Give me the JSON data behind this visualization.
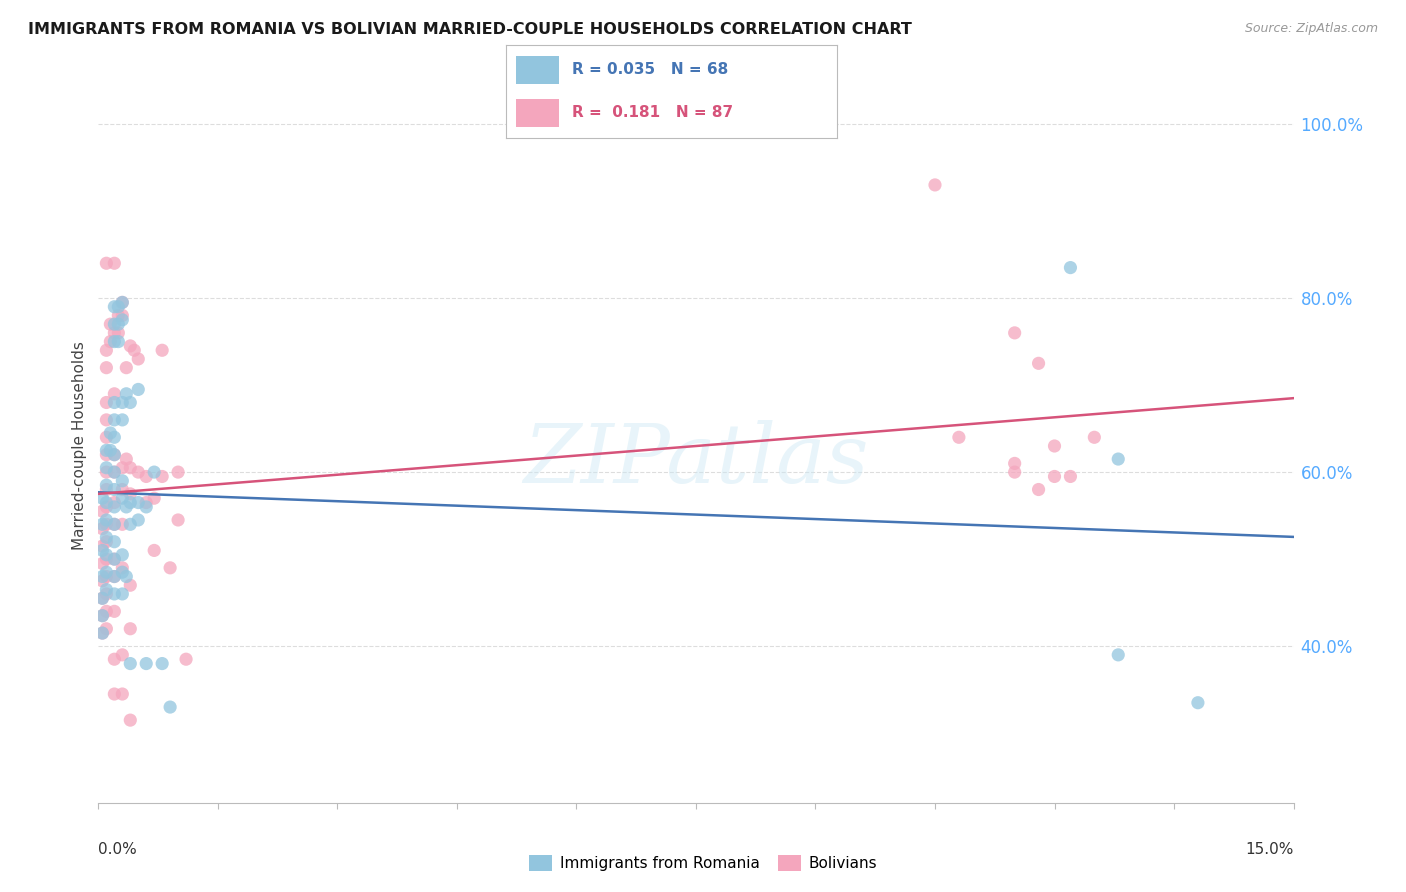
{
  "title": "IMMIGRANTS FROM ROMANIA VS BOLIVIAN MARRIED-COUPLE HOUSEHOLDS CORRELATION CHART",
  "source": "Source: ZipAtlas.com",
  "ylabel": "Married-couple Households",
  "xmin": 0.0,
  "xmax": 0.15,
  "ymin": 0.22,
  "ymax": 1.04,
  "yticks": [
    0.4,
    0.6,
    0.8,
    1.0
  ],
  "ytick_labels": [
    "40.0%",
    "60.0%",
    "80.0%",
    "100.0%"
  ],
  "romania_color": "#92c5de",
  "bolivia_color": "#f4a6bd",
  "romania_line_color": "#4575b4",
  "bolivia_line_color": "#d6537a",
  "watermark": "ZIPatlas",
  "romania_points": [
    [
      0.0005,
      0.57
    ],
    [
      0.0005,
      0.54
    ],
    [
      0.0005,
      0.51
    ],
    [
      0.0005,
      0.48
    ],
    [
      0.0005,
      0.455
    ],
    [
      0.0005,
      0.435
    ],
    [
      0.0005,
      0.415
    ],
    [
      0.001,
      0.625
    ],
    [
      0.001,
      0.605
    ],
    [
      0.001,
      0.585
    ],
    [
      0.001,
      0.565
    ],
    [
      0.001,
      0.545
    ],
    [
      0.001,
      0.525
    ],
    [
      0.001,
      0.505
    ],
    [
      0.001,
      0.485
    ],
    [
      0.001,
      0.465
    ],
    [
      0.0015,
      0.645
    ],
    [
      0.0015,
      0.625
    ],
    [
      0.002,
      0.79
    ],
    [
      0.002,
      0.77
    ],
    [
      0.002,
      0.75
    ],
    [
      0.002,
      0.68
    ],
    [
      0.002,
      0.66
    ],
    [
      0.002,
      0.64
    ],
    [
      0.002,
      0.62
    ],
    [
      0.002,
      0.6
    ],
    [
      0.002,
      0.58
    ],
    [
      0.002,
      0.56
    ],
    [
      0.002,
      0.54
    ],
    [
      0.002,
      0.52
    ],
    [
      0.002,
      0.5
    ],
    [
      0.002,
      0.48
    ],
    [
      0.002,
      0.46
    ],
    [
      0.0025,
      0.79
    ],
    [
      0.0025,
      0.77
    ],
    [
      0.0025,
      0.75
    ],
    [
      0.003,
      0.795
    ],
    [
      0.003,
      0.775
    ],
    [
      0.003,
      0.68
    ],
    [
      0.003,
      0.66
    ],
    [
      0.003,
      0.59
    ],
    [
      0.003,
      0.57
    ],
    [
      0.003,
      0.505
    ],
    [
      0.003,
      0.485
    ],
    [
      0.003,
      0.46
    ],
    [
      0.0035,
      0.69
    ],
    [
      0.0035,
      0.56
    ],
    [
      0.0035,
      0.48
    ],
    [
      0.004,
      0.68
    ],
    [
      0.004,
      0.565
    ],
    [
      0.004,
      0.54
    ],
    [
      0.004,
      0.38
    ],
    [
      0.005,
      0.695
    ],
    [
      0.005,
      0.565
    ],
    [
      0.005,
      0.545
    ],
    [
      0.006,
      0.56
    ],
    [
      0.006,
      0.38
    ],
    [
      0.007,
      0.6
    ],
    [
      0.008,
      0.38
    ],
    [
      0.009,
      0.33
    ],
    [
      0.122,
      0.835
    ],
    [
      0.128,
      0.615
    ],
    [
      0.128,
      0.39
    ],
    [
      0.138,
      0.335
    ]
  ],
  "bolivia_points": [
    [
      0.0005,
      0.555
    ],
    [
      0.0005,
      0.535
    ],
    [
      0.0005,
      0.515
    ],
    [
      0.0005,
      0.495
    ],
    [
      0.0005,
      0.475
    ],
    [
      0.0005,
      0.455
    ],
    [
      0.0005,
      0.435
    ],
    [
      0.0005,
      0.415
    ],
    [
      0.001,
      0.84
    ],
    [
      0.001,
      0.74
    ],
    [
      0.001,
      0.72
    ],
    [
      0.001,
      0.68
    ],
    [
      0.001,
      0.66
    ],
    [
      0.001,
      0.64
    ],
    [
      0.001,
      0.62
    ],
    [
      0.001,
      0.6
    ],
    [
      0.001,
      0.58
    ],
    [
      0.001,
      0.56
    ],
    [
      0.001,
      0.54
    ],
    [
      0.001,
      0.52
    ],
    [
      0.001,
      0.5
    ],
    [
      0.001,
      0.48
    ],
    [
      0.001,
      0.46
    ],
    [
      0.001,
      0.44
    ],
    [
      0.001,
      0.42
    ],
    [
      0.0015,
      0.77
    ],
    [
      0.0015,
      0.75
    ],
    [
      0.002,
      0.84
    ],
    [
      0.002,
      0.76
    ],
    [
      0.002,
      0.69
    ],
    [
      0.002,
      0.62
    ],
    [
      0.002,
      0.6
    ],
    [
      0.002,
      0.565
    ],
    [
      0.002,
      0.54
    ],
    [
      0.002,
      0.5
    ],
    [
      0.002,
      0.48
    ],
    [
      0.002,
      0.44
    ],
    [
      0.002,
      0.385
    ],
    [
      0.002,
      0.345
    ],
    [
      0.0025,
      0.78
    ],
    [
      0.0025,
      0.76
    ],
    [
      0.003,
      0.795
    ],
    [
      0.003,
      0.78
    ],
    [
      0.003,
      0.605
    ],
    [
      0.003,
      0.58
    ],
    [
      0.003,
      0.54
    ],
    [
      0.003,
      0.49
    ],
    [
      0.003,
      0.39
    ],
    [
      0.003,
      0.345
    ],
    [
      0.0035,
      0.72
    ],
    [
      0.0035,
      0.615
    ],
    [
      0.004,
      0.745
    ],
    [
      0.004,
      0.605
    ],
    [
      0.004,
      0.575
    ],
    [
      0.004,
      0.47
    ],
    [
      0.004,
      0.42
    ],
    [
      0.004,
      0.315
    ],
    [
      0.0045,
      0.74
    ],
    [
      0.005,
      0.73
    ],
    [
      0.005,
      0.6
    ],
    [
      0.006,
      0.595
    ],
    [
      0.006,
      0.565
    ],
    [
      0.007,
      0.57
    ],
    [
      0.007,
      0.51
    ],
    [
      0.008,
      0.74
    ],
    [
      0.008,
      0.595
    ],
    [
      0.009,
      0.49
    ],
    [
      0.01,
      0.6
    ],
    [
      0.01,
      0.545
    ],
    [
      0.011,
      0.385
    ],
    [
      0.105,
      0.93
    ],
    [
      0.108,
      0.64
    ],
    [
      0.115,
      0.76
    ],
    [
      0.115,
      0.61
    ],
    [
      0.115,
      0.6
    ],
    [
      0.118,
      0.725
    ],
    [
      0.118,
      0.58
    ],
    [
      0.12,
      0.63
    ],
    [
      0.12,
      0.595
    ],
    [
      0.122,
      0.595
    ],
    [
      0.125,
      0.64
    ]
  ]
}
